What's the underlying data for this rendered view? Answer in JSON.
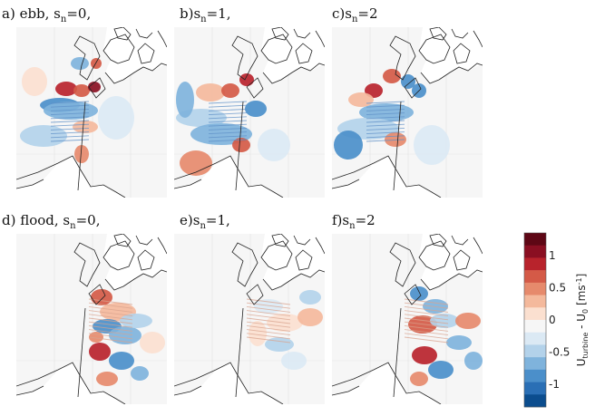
{
  "chart_data": {
    "type": "heatmap",
    "panels": [
      {
        "prefix": "a) ebb, s",
        "sub": "n",
        "suffix": "=0,"
      },
      {
        "prefix": "b)s",
        "sub": "n",
        "suffix": "=1,"
      },
      {
        "prefix": "c)s",
        "sub": "n",
        "suffix": "=2"
      },
      {
        "prefix": "d) flood, s",
        "sub": "n",
        "suffix": "=0,"
      },
      {
        "prefix": "e)s",
        "sub": "n",
        "suffix": "=1,"
      },
      {
        "prefix": "f)s",
        "sub": "n",
        "suffix": "=2"
      }
    ],
    "colorbar": {
      "ticks": [
        "1",
        "0.5",
        "0",
        "-0.5",
        "-1"
      ],
      "tick_values": [
        1,
        0.5,
        0,
        -0.5,
        -1
      ],
      "range": [
        -1.35,
        1.35
      ],
      "label": "U_turbine - U_0 [ms^-1]",
      "label_main": "U",
      "label_sub1": "turbine",
      "label_mid": " - U",
      "label_sub2": "0",
      "label_unit": " [ms",
      "label_sup": "-1",
      "label_end": "]",
      "colors": [
        "#0b4d8e",
        "#2a6fb5",
        "#4b8fca",
        "#7fb3dc",
        "#b3d2ea",
        "#dbe9f4",
        "#f6f6f6",
        "#fbe0d0",
        "#f4b99c",
        "#e68a6c",
        "#d45a47",
        "#b8232c",
        "#8a0f22",
        "#5e0715"
      ]
    }
  }
}
